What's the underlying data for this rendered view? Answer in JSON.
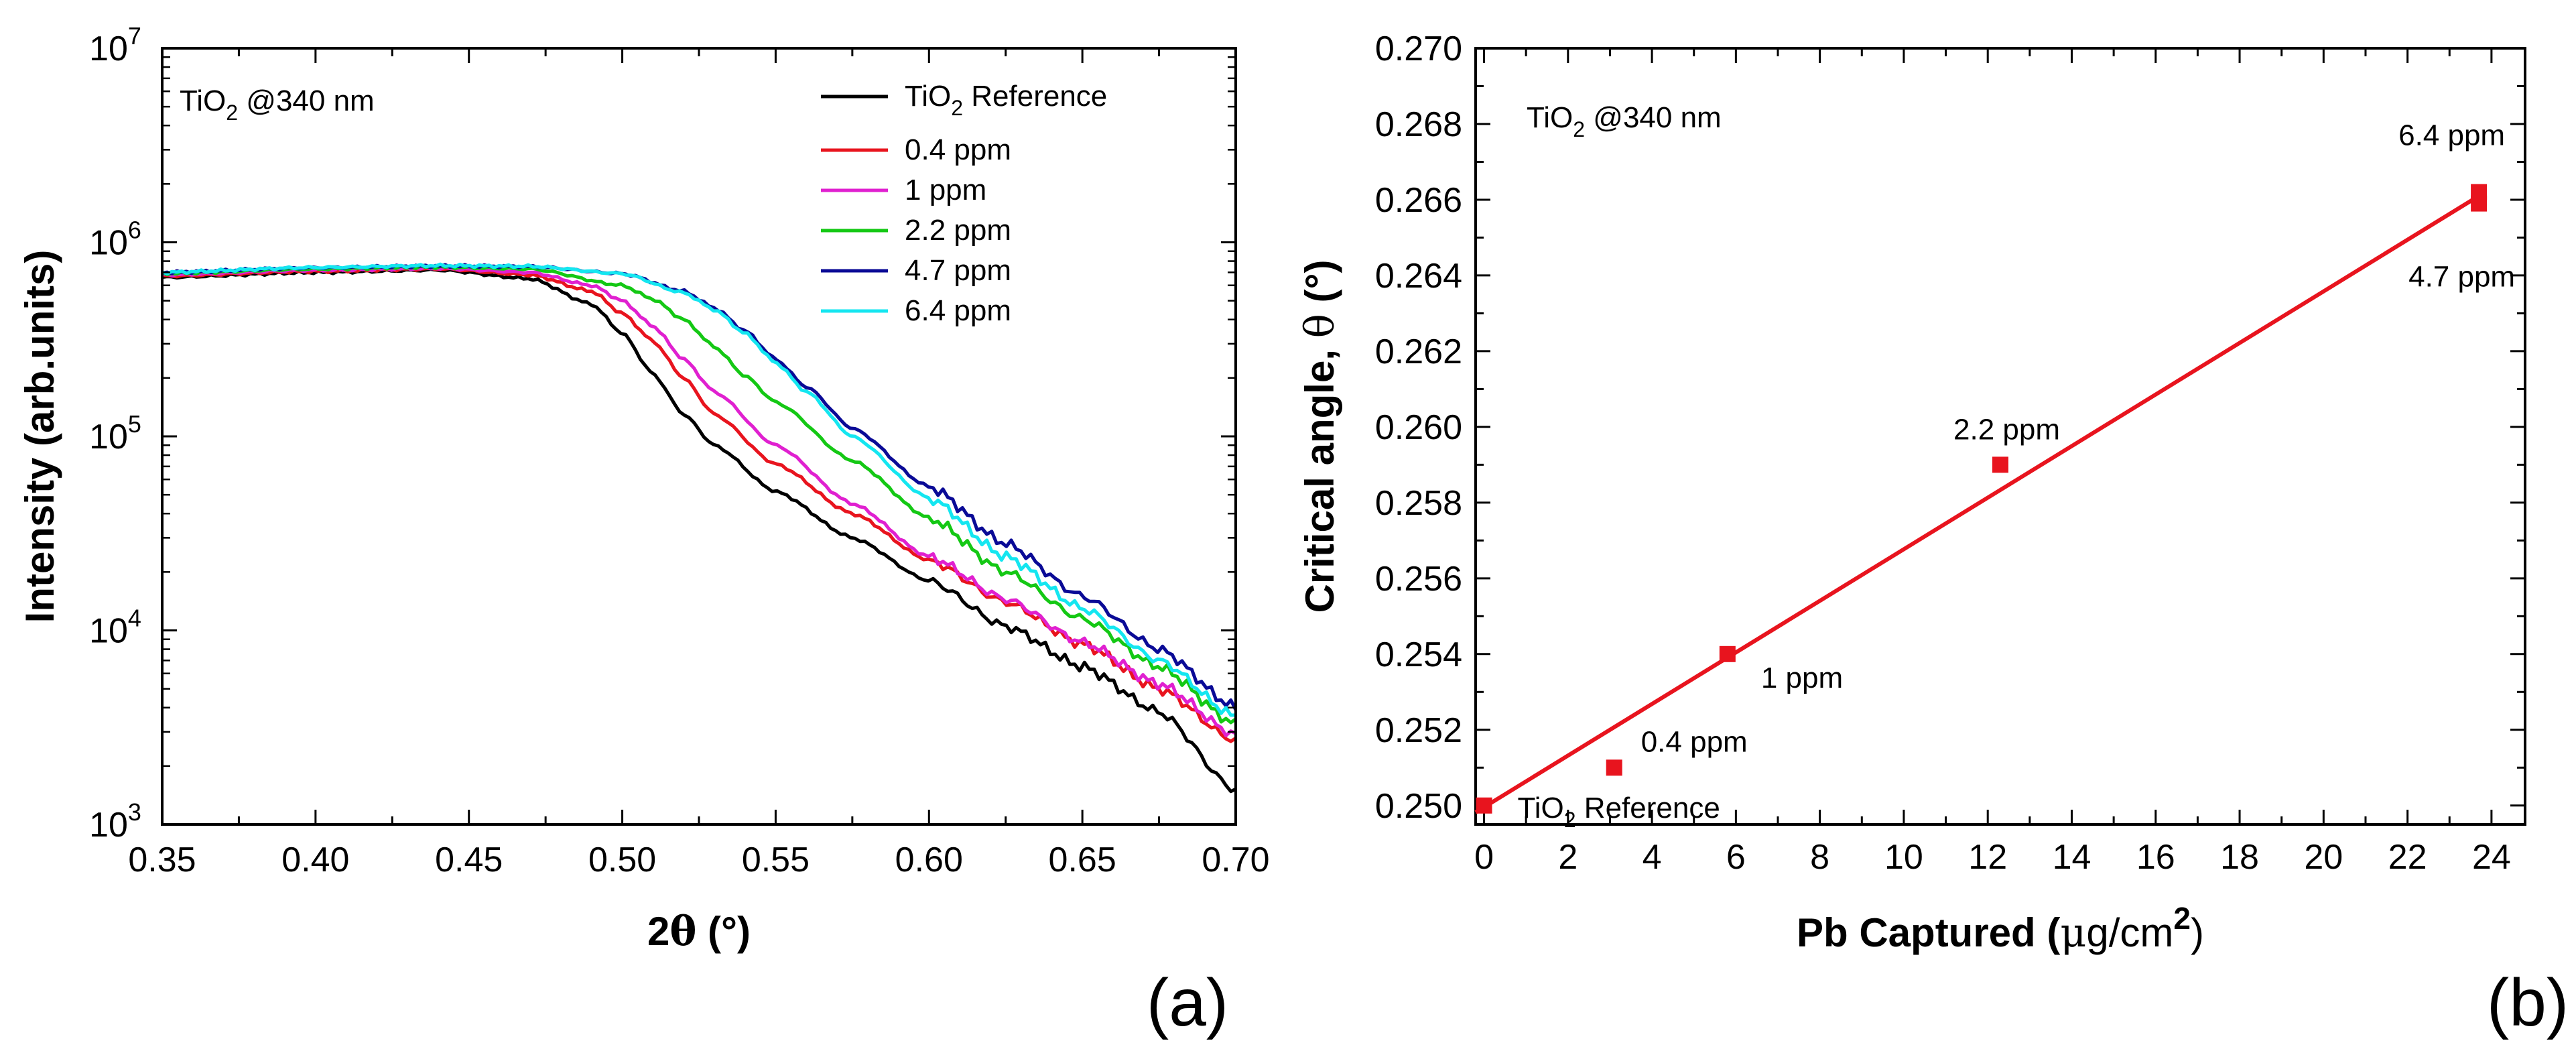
{
  "chart_data": [
    {
      "type": "line",
      "panel_label": "(a)",
      "annotation": {
        "main": "TiO",
        "sub": "2",
        "tail": " @340 nm"
      },
      "xlabel": {
        "main": "2",
        "symbol": "θ",
        "tail": " (°)"
      },
      "ylabel": "Intensity (arb.units)",
      "xlim": [
        0.35,
        0.7
      ],
      "ylim": [
        1000,
        10000000
      ],
      "yscale": "log",
      "x_ticks": [
        "0.35",
        "0.40",
        "0.45",
        "0.50",
        "0.55",
        "0.60",
        "0.65",
        "0.70"
      ],
      "y_ticks": [
        {
          "base": "10",
          "exp": "3"
        },
        {
          "base": "10",
          "exp": "4"
        },
        {
          "base": "10",
          "exp": "5"
        },
        {
          "base": "10",
          "exp": "6"
        },
        {
          "base": "10",
          "exp": "7"
        }
      ],
      "legend_position": "top-right",
      "series": [
        {
          "name": "TiO2 Reference",
          "label": {
            "main": "TiO",
            "sub": "2",
            "tail": " Reference"
          },
          "color": "#000000",
          "points": [
            [
              0.35,
              660000
            ],
            [
              0.4,
              700000
            ],
            [
              0.44,
              720000
            ],
            [
              0.47,
              650000
            ],
            [
              0.49,
              480000
            ],
            [
              0.5,
              340000
            ],
            [
              0.51,
              210000
            ],
            [
              0.52,
              130000
            ],
            [
              0.53,
              90000
            ],
            [
              0.55,
              52000
            ],
            [
              0.575,
              30000
            ],
            [
              0.6,
              18000
            ],
            [
              0.625,
              10500
            ],
            [
              0.65,
              6500
            ],
            [
              0.675,
              3800
            ],
            [
              0.7,
              1500
            ]
          ]
        },
        {
          "name": "0.4 ppm",
          "label": {
            "main": "0.4 ppm"
          },
          "color": "#e8141e",
          "points": [
            [
              0.35,
              670000
            ],
            [
              0.4,
              710000
            ],
            [
              0.44,
              730000
            ],
            [
              0.47,
              680000
            ],
            [
              0.49,
              560000
            ],
            [
              0.5,
              430000
            ],
            [
              0.51,
              310000
            ],
            [
              0.52,
              200000
            ],
            [
              0.53,
              130000
            ],
            [
              0.55,
              72000
            ],
            [
              0.575,
              40000
            ],
            [
              0.6,
              23000
            ],
            [
              0.625,
              14000
            ],
            [
              0.65,
              8500
            ],
            [
              0.675,
              5000
            ],
            [
              0.7,
              2700
            ]
          ]
        },
        {
          "name": "1 ppm",
          "label": {
            "main": "1 ppm"
          },
          "color": "#e020d0",
          "points": [
            [
              0.35,
              680000
            ],
            [
              0.4,
              720000
            ],
            [
              0.44,
              735000
            ],
            [
              0.47,
              700000
            ],
            [
              0.49,
              600000
            ],
            [
              0.5,
              500000
            ],
            [
              0.51,
              370000
            ],
            [
              0.52,
              250000
            ],
            [
              0.53,
              170000
            ],
            [
              0.55,
              90000
            ],
            [
              0.575,
              45000
            ],
            [
              0.6,
              24000
            ],
            [
              0.625,
              14500
            ],
            [
              0.65,
              8700
            ],
            [
              0.675,
              5300
            ],
            [
              0.7,
              2900
            ]
          ]
        },
        {
          "name": "2.2 ppm",
          "label": {
            "main": "2.2 ppm"
          },
          "color": "#14c814",
          "points": [
            [
              0.35,
              690000
            ],
            [
              0.4,
              730000
            ],
            [
              0.44,
              745000
            ],
            [
              0.47,
              730000
            ],
            [
              0.5,
              600000
            ],
            [
              0.51,
              510000
            ],
            [
              0.52,
              400000
            ],
            [
              0.53,
              290000
            ],
            [
              0.54,
              205000
            ],
            [
              0.55,
              150000
            ],
            [
              0.575,
              75000
            ],
            [
              0.6,
              38000
            ],
            [
              0.625,
              20000
            ],
            [
              0.65,
              11500
            ],
            [
              0.675,
              6500
            ],
            [
              0.7,
              3300
            ]
          ]
        },
        {
          "name": "4.7 ppm",
          "label": {
            "main": "4.7 ppm"
          },
          "color": "#0a0a96",
          "points": [
            [
              0.35,
              700000
            ],
            [
              0.4,
              740000
            ],
            [
              0.44,
              755000
            ],
            [
              0.47,
              750000
            ],
            [
              0.5,
              690000
            ],
            [
              0.52,
              560000
            ],
            [
              0.53,
              460000
            ],
            [
              0.54,
              350000
            ],
            [
              0.55,
              250000
            ],
            [
              0.56,
              180000
            ],
            [
              0.575,
              110000
            ],
            [
              0.6,
              55000
            ],
            [
              0.625,
              28000
            ],
            [
              0.65,
              15000
            ],
            [
              0.675,
              8000
            ],
            [
              0.7,
              4000
            ]
          ]
        },
        {
          "name": "6.4 ppm",
          "label": {
            "main": "6.4 ppm"
          },
          "color": "#14e6f0",
          "points": [
            [
              0.35,
              700000
            ],
            [
              0.4,
              742000
            ],
            [
              0.44,
              758000
            ],
            [
              0.47,
              752000
            ],
            [
              0.5,
              690000
            ],
            [
              0.52,
              550000
            ],
            [
              0.53,
              450000
            ],
            [
              0.54,
              340000
            ],
            [
              0.55,
              240000
            ],
            [
              0.56,
              170000
            ],
            [
              0.575,
              100000
            ],
            [
              0.6,
              48000
            ],
            [
              0.625,
              24000
            ],
            [
              0.65,
              13000
            ],
            [
              0.675,
              7000
            ],
            [
              0.7,
              3600
            ]
          ]
        }
      ]
    },
    {
      "type": "scatter",
      "panel_label": "(b)",
      "annotation": {
        "main": "TiO",
        "sub": "2",
        "tail": " @340 nm"
      },
      "xlabel": {
        "main": "Pb Captured (",
        "symbol": "μ",
        "tail": "g/cm",
        "sup": "2",
        "close": ")"
      },
      "ylabel": {
        "main": "Critical angle, ",
        "symbol": "θ",
        "tail": " (°)"
      },
      "xlim": [
        -0.2,
        24.8
      ],
      "ylim": [
        0.2495,
        0.27
      ],
      "x_ticks": [
        "0",
        "2",
        "4",
        "6",
        "8",
        "10",
        "12",
        "14",
        "16",
        "18",
        "20",
        "22",
        "24"
      ],
      "y_ticks": [
        "0.250",
        "0.252",
        "0.254",
        "0.256",
        "0.258",
        "0.260",
        "0.262",
        "0.264",
        "0.266",
        "0.268",
        "0.270"
      ],
      "marker_color": "#e8141e",
      "points": [
        {
          "x": 0.0,
          "y": 0.25,
          "label": {
            "main": "TiO",
            "sub": "2",
            "tail": " Reference"
          }
        },
        {
          "x": 3.1,
          "y": 0.251,
          "label": {
            "main": "0.4 ppm"
          }
        },
        {
          "x": 5.8,
          "y": 0.254,
          "label": {
            "main": "1 ppm"
          }
        },
        {
          "x": 12.3,
          "y": 0.259,
          "label": {
            "main": "2.2 ppm"
          }
        },
        {
          "x": 23.7,
          "y": 0.2659,
          "label": {
            "main": "4.7 ppm"
          }
        },
        {
          "x": 23.7,
          "y": 0.2662,
          "label": {
            "main": "6.4 ppm"
          }
        }
      ],
      "fit_line": {
        "x": [
          -0.2,
          23.7
        ],
        "y": [
          0.24982,
          0.2661
        ],
        "color": "#e8141e"
      }
    }
  ]
}
